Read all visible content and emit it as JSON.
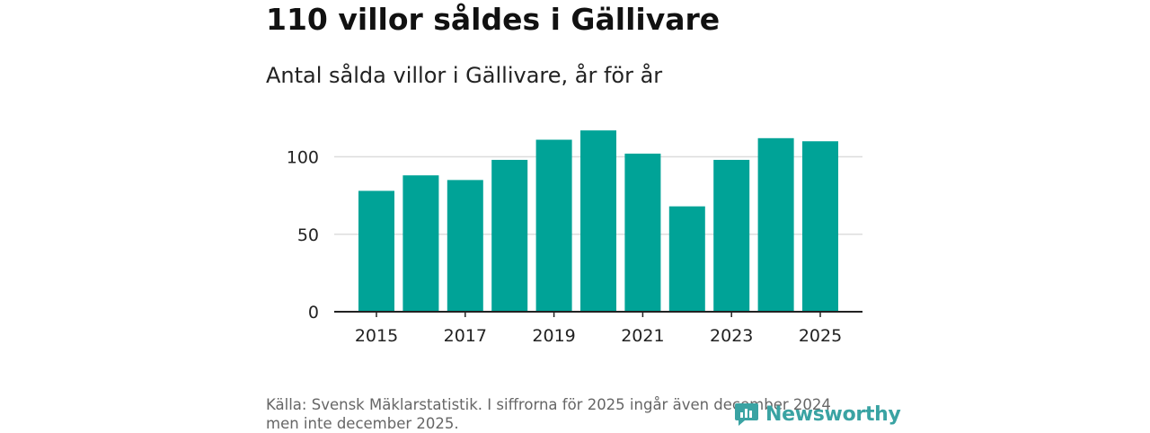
{
  "title": "110 villor såldes i Gällivare",
  "subtitle": "Antal sålda villor i Gällivare, år för år",
  "source": "Källa: Svensk Mäklarstatistik. I siffrorna för 2025 ingår även december 2024 men inte december 2025.",
  "brand": {
    "name": "Newsworthy",
    "icon": "newsworthy-logo-icon",
    "color": "#3aa3a3"
  },
  "colors": {
    "bar": "#00a397",
    "grid": "#dddddd",
    "axis": "#222222"
  },
  "chart_data": {
    "type": "bar",
    "title": "Antal sålda villor i Gällivare, år för år",
    "xlabel": "",
    "ylabel": "",
    "categories": [
      "2015",
      "2016",
      "2017",
      "2018",
      "2019",
      "2020",
      "2021",
      "2022",
      "2023",
      "2024",
      "2025"
    ],
    "values": [
      78,
      88,
      85,
      98,
      111,
      117,
      102,
      68,
      98,
      112,
      110
    ],
    "ylim": [
      0,
      120
    ],
    "yticks": [
      0,
      50,
      100
    ],
    "xtick_labels": [
      "2015",
      "2017",
      "2019",
      "2021",
      "2023",
      "2025"
    ],
    "grid": true
  }
}
